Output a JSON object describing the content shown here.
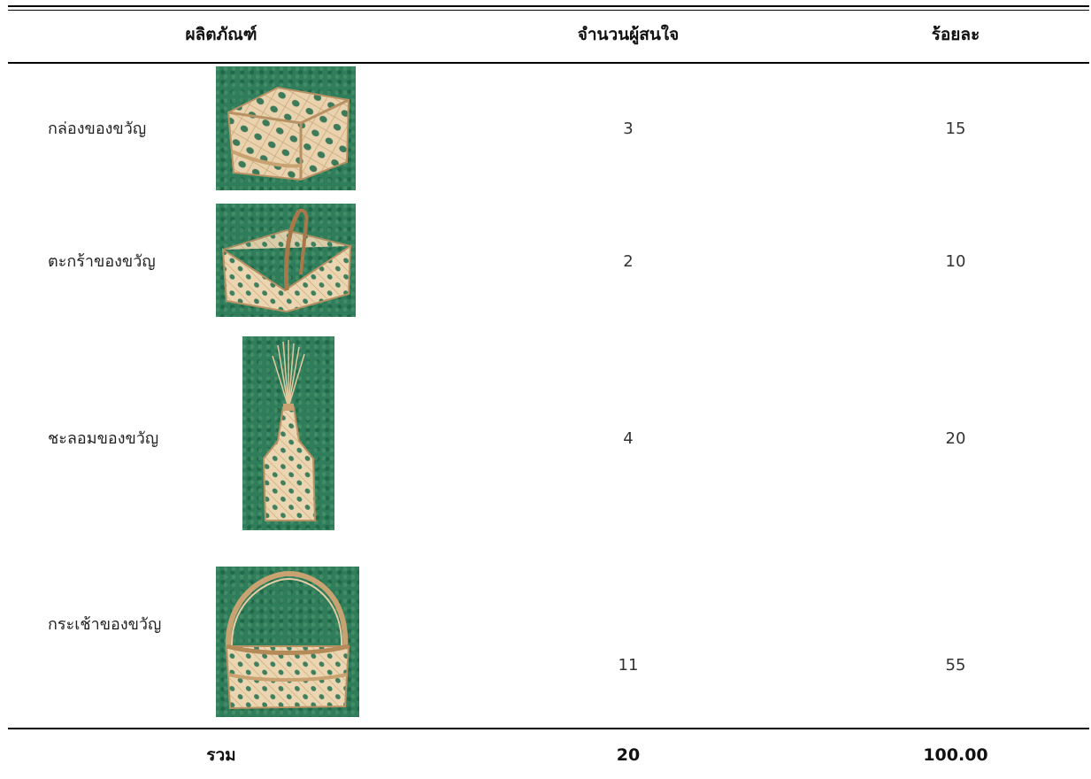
{
  "headers": {
    "product": "ผลิตภัณฑ์",
    "interested": "จำนวนผู้สนใจ",
    "percent": "ร้อยละ"
  },
  "rows": [
    {
      "product": "กล่องของขวัญ",
      "interested": "3",
      "percent": "15"
    },
    {
      "product": "ตะกร้าของขวัญ",
      "interested": "2",
      "percent": "10"
    },
    {
      "product": "ชะลอมของขวัญ",
      "interested": "4",
      "percent": "20"
    },
    {
      "product": "กระเช้าของขวัญ",
      "interested": "11",
      "percent": "55"
    }
  ],
  "total": {
    "label": "รวม",
    "interested": "20",
    "percent": "100.00"
  },
  "colors": {
    "background": "#ffffff",
    "rule": "#000000",
    "turf_green": "#2f7d5b",
    "bamboo": "#e8cfa8"
  }
}
